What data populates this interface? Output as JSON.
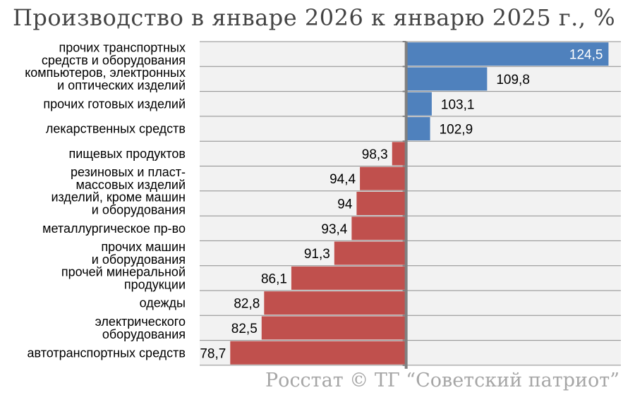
{
  "title": "Производство в январе 2026 к январю 2025 г., %",
  "source": "Росстат © ТГ “Советский патриот”",
  "colors": {
    "positive": "#4f81bd",
    "negative": "#c0504d",
    "plot_bg": "#f2f2f2",
    "grid": "#8c8c8c",
    "axis": "#808080"
  },
  "chart_data": {
    "type": "bar",
    "orientation": "horizontal",
    "baseline": 100,
    "xlim": [
      75,
      126
    ],
    "grid": true,
    "categories": [
      [
        "прочих транспортных",
        "средств и оборудования"
      ],
      [
        "компьютеров, электронных",
        "и оптических изделий"
      ],
      [
        "прочих готовых изделий"
      ],
      [
        "лекарственных средств"
      ],
      [
        "пищевых продуктов"
      ],
      [
        "резиновых и пласт-",
        "массовых изделий"
      ],
      [
        "изделий, кроме машин",
        "и оборудования"
      ],
      [
        "металлургическое пр-во"
      ],
      [
        "прочих машин",
        "и оборудования"
      ],
      [
        "прочей минеральной",
        "продукции"
      ],
      [
        "одежды"
      ],
      [
        "электрического",
        "оборудования"
      ],
      [
        "автотранспортных средств"
      ]
    ],
    "values": [
      124.5,
      109.8,
      103.1,
      102.9,
      98.3,
      94.4,
      94,
      93.4,
      91.3,
      86.1,
      82.8,
      82.5,
      78.7
    ],
    "value_labels": [
      "124,5",
      "109,8",
      "103,1",
      "102,9",
      "98,3",
      "94,4",
      "94",
      "93,4",
      "91,3",
      "86,1",
      "82,8",
      "82,5",
      "78,7"
    ]
  }
}
